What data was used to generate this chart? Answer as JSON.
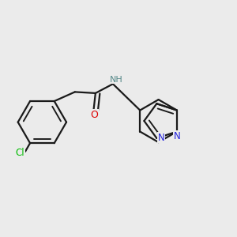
{
  "background_color": "#ebebeb",
  "bond_color": "#1a1a1a",
  "atom_colors": {
    "Cl": "#00bb00",
    "O": "#dd0000",
    "N": "#2222dd",
    "NH": "#558888",
    "C": "#1a1a1a"
  },
  "figsize": [
    3.0,
    3.0
  ],
  "dpi": 100
}
